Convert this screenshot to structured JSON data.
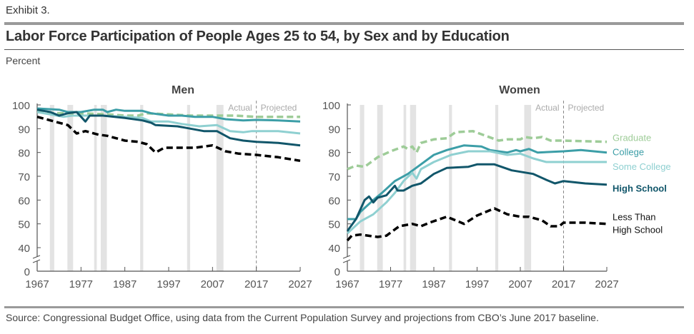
{
  "header": {
    "exhibit": "Exhibit 3.",
    "title": "Labor Force Participation of People Ages 25 to 54, by Sex and by Education",
    "ylabel": "Percent"
  },
  "source": "Source: Congressional Budget Office, using data from the Current Population Survey and projections from CBO’s June 2017 baseline.",
  "colors": {
    "graduate": "#9ecc98",
    "college": "#3c9ea7",
    "some_college": "#8fd0d1",
    "high_school": "#11566a",
    "less_than_high_school": "#000000",
    "recession": "#e3e3e3"
  },
  "chart_data": [
    {
      "type": "line",
      "title": "Men",
      "xlabel": "",
      "ylabel": "Percent",
      "xlim": [
        1967,
        2027
      ],
      "ylim": [
        0,
        100
      ],
      "yticks": [
        0,
        40,
        50,
        60,
        70,
        80,
        90,
        100
      ],
      "xticks": [
        1967,
        1977,
        1987,
        1997,
        2007,
        2017,
        2027
      ],
      "axis_break": [
        0,
        40
      ],
      "actual_label": "Actual",
      "projected_label": "Projected",
      "projection_start": 2017,
      "recessions": [
        [
          1969.9,
          1970.9
        ],
        [
          1973.9,
          1975.2
        ],
        [
          1980.0,
          1980.6
        ],
        [
          1981.5,
          1982.9
        ],
        [
          1990.5,
          1991.2
        ],
        [
          2001.2,
          2001.9
        ],
        [
          2007.9,
          2009.5
        ]
      ],
      "series": [
        {
          "key": "graduate",
          "name": "Graduate",
          "dashed": true,
          "points": [
            [
              1967,
              97
            ],
            [
              1972,
              96.5
            ],
            [
              1977,
              96.5
            ],
            [
              1983,
              96
            ],
            [
              1987,
              95.5
            ],
            [
              1990,
              95.5
            ],
            [
              1992,
              96.5
            ],
            [
              1997,
              96
            ],
            [
              2002,
              95.5
            ],
            [
              2007,
              95.5
            ],
            [
              2012,
              95.5
            ],
            [
              2017,
              95
            ],
            [
              2027,
              95
            ]
          ]
        },
        {
          "key": "college",
          "name": "College",
          "dashed": false,
          "points": [
            [
              1967,
              98.5
            ],
            [
              1972,
              98
            ],
            [
              1974,
              97
            ],
            [
              1977,
              97
            ],
            [
              1980,
              98
            ],
            [
              1982,
              98
            ],
            [
              1983,
              97
            ],
            [
              1985,
              98
            ],
            [
              1987,
              97.5
            ],
            [
              1991,
              97.5
            ],
            [
              1993,
              96.5
            ],
            [
              1997,
              95.5
            ],
            [
              2000,
              95.5
            ],
            [
              2003,
              95
            ],
            [
              2007,
              95
            ],
            [
              2010,
              94
            ],
            [
              2014,
              93.5
            ],
            [
              2017,
              93.7
            ],
            [
              2022,
              93.5
            ],
            [
              2027,
              93
            ]
          ]
        },
        {
          "key": "some_college",
          "name": "Some College",
          "dashed": false,
          "points": [
            [
              1967,
              97
            ],
            [
              1970,
              96
            ],
            [
              1973,
              95
            ],
            [
              1975,
              95.5
            ],
            [
              1977,
              95.5
            ],
            [
              1982,
              95.5
            ],
            [
              1987,
              95
            ],
            [
              1991,
              94.5
            ],
            [
              1993,
              93
            ],
            [
              1997,
              93
            ],
            [
              2000,
              92
            ],
            [
              2004,
              91
            ],
            [
              2008,
              91.5
            ],
            [
              2011,
              89
            ],
            [
              2014,
              88.5
            ],
            [
              2016,
              89
            ],
            [
              2017,
              89
            ],
            [
              2022,
              89
            ],
            [
              2027,
              88
            ]
          ]
        },
        {
          "key": "high_school",
          "name": "High School",
          "dashed": false,
          "points": [
            [
              1967,
              98
            ],
            [
              1970,
              97
            ],
            [
              1972,
              95.5
            ],
            [
              1974,
              96.5
            ],
            [
              1976,
              97
            ],
            [
              1978,
              93
            ],
            [
              1979,
              95.5
            ],
            [
              1982,
              95.5
            ],
            [
              1987,
              94.5
            ],
            [
              1991,
              93.5
            ],
            [
              1993,
              92.5
            ],
            [
              1994,
              91.5
            ],
            [
              1999,
              91
            ],
            [
              2002,
              90
            ],
            [
              2005,
              89
            ],
            [
              2008,
              89
            ],
            [
              2011,
              86
            ],
            [
              2014,
              85
            ],
            [
              2017,
              84.5
            ],
            [
              2022,
              84
            ],
            [
              2027,
              83
            ]
          ]
        },
        {
          "key": "less_than_high_school",
          "name": "Less Than High School",
          "dashed": true,
          "points": [
            [
              1967,
              95
            ],
            [
              1970,
              93.5
            ],
            [
              1974,
              91.5
            ],
            [
              1976,
              88
            ],
            [
              1978,
              89
            ],
            [
              1981,
              87.5
            ],
            [
              1983,
              87
            ],
            [
              1987,
              85
            ],
            [
              1990,
              84.5
            ],
            [
              1992,
              83.5
            ],
            [
              1994,
              80
            ],
            [
              1996,
              82
            ],
            [
              2000,
              82
            ],
            [
              2003,
              82
            ],
            [
              2007,
              83
            ],
            [
              2010,
              80.5
            ],
            [
              2013,
              79.5
            ],
            [
              2017,
              79
            ],
            [
              2022,
              78
            ],
            [
              2027,
              76.5
            ]
          ]
        }
      ]
    },
    {
      "type": "line",
      "title": "Women",
      "xlabel": "",
      "ylabel": "Percent",
      "xlim": [
        1967,
        2027
      ],
      "ylim": [
        0,
        100
      ],
      "yticks": [
        0,
        40,
        50,
        60,
        70,
        80,
        90,
        100
      ],
      "xticks": [
        1967,
        1977,
        1987,
        1997,
        2007,
        2017,
        2027
      ],
      "axis_break": [
        0,
        40
      ],
      "actual_label": "Actual",
      "projected_label": "Projected",
      "projection_start": 2017,
      "recessions": [
        [
          1969.9,
          1970.9
        ],
        [
          1973.9,
          1975.2
        ],
        [
          1980.0,
          1980.6
        ],
        [
          1981.5,
          1982.9
        ],
        [
          1990.5,
          1991.2
        ],
        [
          2001.2,
          2001.9
        ],
        [
          2007.9,
          2009.5
        ]
      ],
      "series": [
        {
          "key": "graduate",
          "name": "Graduate",
          "label": "Graduate",
          "dashed": true,
          "points": [
            [
              1967,
              73
            ],
            [
              1969,
              74.5
            ],
            [
              1971,
              74
            ],
            [
              1974,
              78
            ],
            [
              1977,
              80.5
            ],
            [
              1980,
              82.5
            ],
            [
              1981,
              81.5
            ],
            [
              1982,
              82.5
            ],
            [
              1983,
              80
            ],
            [
              1984,
              84
            ],
            [
              1987,
              85.5
            ],
            [
              1990,
              86
            ],
            [
              1992,
              88.5
            ],
            [
              1996,
              89
            ],
            [
              1999,
              87
            ],
            [
              2002,
              85
            ],
            [
              2004,
              85.5
            ],
            [
              2007,
              85.5
            ],
            [
              2008,
              86.5
            ],
            [
              2010,
              86
            ],
            [
              2012,
              86.5
            ],
            [
              2014,
              85
            ],
            [
              2017,
              85
            ],
            [
              2027,
              84.5
            ]
          ]
        },
        {
          "key": "college",
          "name": "College",
          "label": "College",
          "dashed": false,
          "points": [
            [
              1967,
              52
            ],
            [
              1969,
              52
            ],
            [
              1970,
              55
            ],
            [
              1973,
              60
            ],
            [
              1975,
              63
            ],
            [
              1978,
              68
            ],
            [
              1981,
              71
            ],
            [
              1984,
              75
            ],
            [
              1987,
              79
            ],
            [
              1990,
              81
            ],
            [
              1994,
              83
            ],
            [
              1998,
              82.5
            ],
            [
              2000,
              81
            ],
            [
              2004,
              80
            ],
            [
              2006,
              81
            ],
            [
              2007,
              80.5
            ],
            [
              2009,
              81.5
            ],
            [
              2011,
              80
            ],
            [
              2017,
              80.5
            ],
            [
              2021,
              81
            ],
            [
              2027,
              80
            ]
          ]
        },
        {
          "key": "some_college",
          "name": "Some College",
          "label": "Some College",
          "dashed": false,
          "points": [
            [
              1967,
              46
            ],
            [
              1970,
              51
            ],
            [
              1973,
              54
            ],
            [
              1976,
              59
            ],
            [
              1978,
              63
            ],
            [
              1980,
              68
            ],
            [
              1982,
              71.5
            ],
            [
              1983,
              69
            ],
            [
              1984,
              73
            ],
            [
              1987,
              76
            ],
            [
              1991,
              79
            ],
            [
              1995,
              80.5
            ],
            [
              2000,
              80.5
            ],
            [
              2004,
              79
            ],
            [
              2007,
              79.5
            ],
            [
              2010,
              77.5
            ],
            [
              2013,
              76
            ],
            [
              2017,
              76
            ],
            [
              2027,
              76
            ]
          ]
        },
        {
          "key": "high_school",
          "name": "High School",
          "label": "High School",
          "dashed": false,
          "points": [
            [
              1967,
              47
            ],
            [
              1969,
              52
            ],
            [
              1971,
              60
            ],
            [
              1972,
              61.5
            ],
            [
              1973,
              59
            ],
            [
              1974,
              61
            ],
            [
              1976,
              62
            ],
            [
              1978,
              66
            ],
            [
              1978.6,
              64
            ],
            [
              1980,
              64
            ],
            [
              1982,
              66
            ],
            [
              1984,
              67
            ],
            [
              1987,
              71
            ],
            [
              1990,
              73.5
            ],
            [
              1995,
              74
            ],
            [
              1997,
              75
            ],
            [
              2001,
              75
            ],
            [
              2005,
              72.5
            ],
            [
              2010,
              71
            ],
            [
              2013,
              68.5
            ],
            [
              2015,
              67
            ],
            [
              2017,
              68
            ],
            [
              2022,
              67
            ],
            [
              2027,
              66.5
            ]
          ]
        },
        {
          "key": "less_than_high_school",
          "name": "Less Than High School",
          "label_lines": [
            "Less Than",
            "High School"
          ],
          "dashed": true,
          "points": [
            [
              1967,
              43
            ],
            [
              1968,
              45
            ],
            [
              1970,
              45.5
            ],
            [
              1974,
              44.5
            ],
            [
              1976,
              45
            ],
            [
              1979,
              49
            ],
            [
              1982,
              50
            ],
            [
              1984,
              49
            ],
            [
              1986,
              50.5
            ],
            [
              1990,
              53
            ],
            [
              1994,
              50
            ],
            [
              1997,
              53.5
            ],
            [
              2001,
              56.5
            ],
            [
              2004,
              54
            ],
            [
              2007,
              53
            ],
            [
              2009,
              53
            ],
            [
              2012,
              51.5
            ],
            [
              2014,
              49
            ],
            [
              2016,
              49
            ],
            [
              2017,
              50.5
            ],
            [
              2022,
              50.5
            ],
            [
              2027,
              50
            ]
          ]
        }
      ]
    }
  ]
}
